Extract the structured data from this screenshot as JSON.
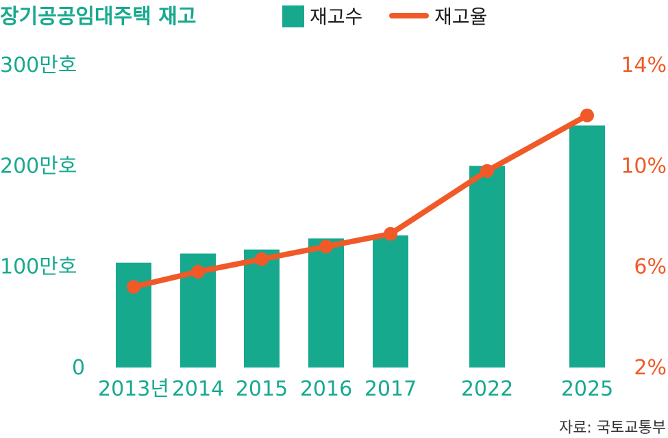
{
  "chart_data": {
    "type": "bar",
    "title": "장기공공임대주택 재고",
    "categories": [
      "2013년",
      "2014",
      "2015",
      "2016",
      "2017",
      "2022",
      "2025"
    ],
    "series": [
      {
        "name": "재고수",
        "type": "bar",
        "axis": "left",
        "color": "#16a98e",
        "values": [
          104,
          113,
          117,
          128,
          131,
          200,
          240
        ]
      },
      {
        "name": "재고율",
        "type": "line",
        "axis": "right",
        "color": "#f05a28",
        "values": [
          5.2,
          5.8,
          6.3,
          6.8,
          7.3,
          9.8,
          12.0
        ]
      }
    ],
    "left_axis": {
      "ylim": [
        0,
        300
      ],
      "ticks": [
        0,
        100,
        200,
        300
      ],
      "tick_labels": [
        "0",
        "100만호",
        "200만호",
        "300만호"
      ]
    },
    "right_axis": {
      "ylim": [
        2,
        14
      ],
      "ticks": [
        2,
        6,
        10,
        14
      ],
      "tick_labels": [
        "2%",
        "6%",
        "10%",
        "14%"
      ]
    },
    "legend_placement": "top",
    "grid": false,
    "source": "자료: 국토교통부"
  }
}
